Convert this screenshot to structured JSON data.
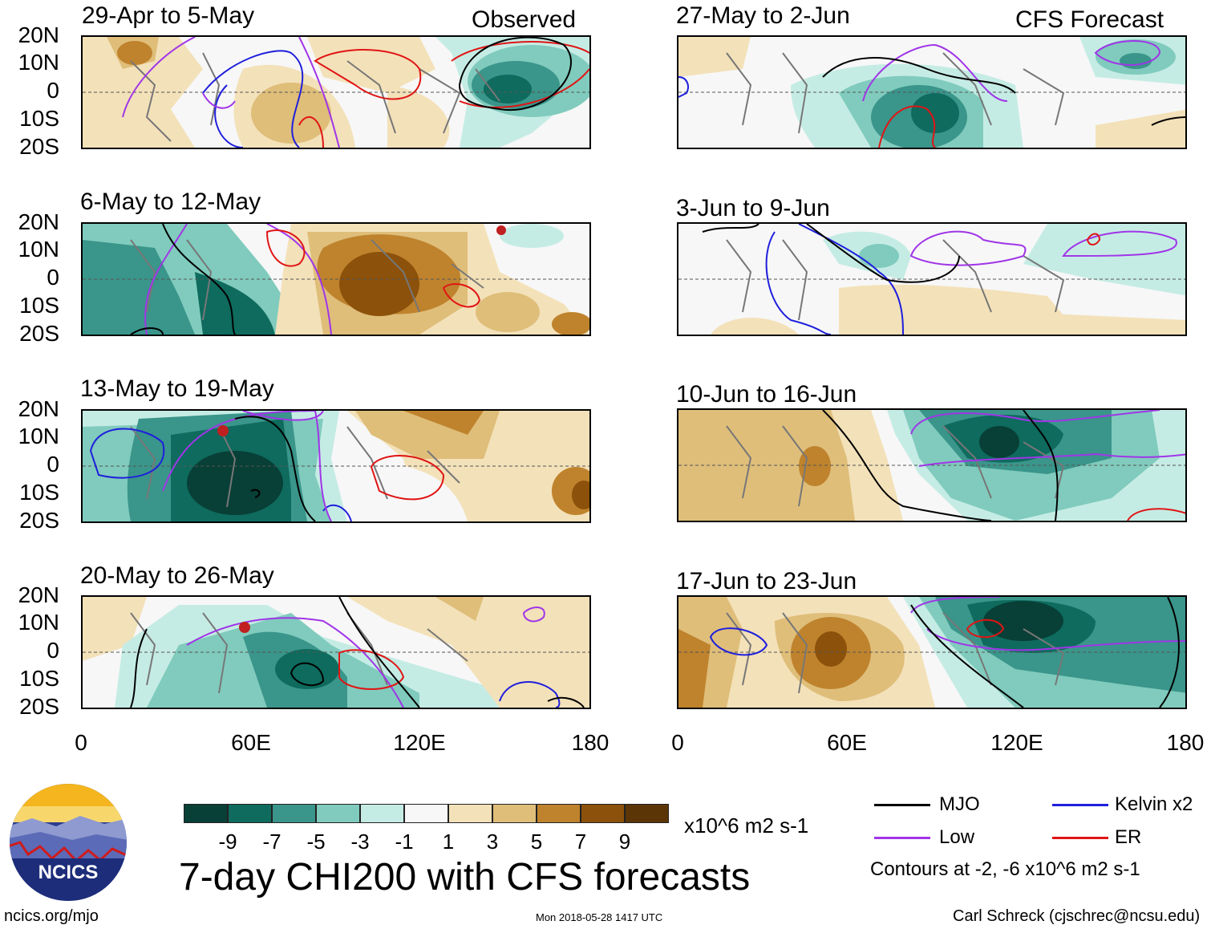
{
  "panels": [
    {
      "id": "p1",
      "title": "29-Apr to 5-May",
      "tag": "Observed"
    },
    {
      "id": "p2",
      "title": "6-May to 12-May",
      "tag": ""
    },
    {
      "id": "p3",
      "title": "13-May to 19-May",
      "tag": ""
    },
    {
      "id": "p4",
      "title": "20-May to 26-May",
      "tag": ""
    },
    {
      "id": "p5",
      "title": "27-May to 2-Jun",
      "tag": "CFS Forecast"
    },
    {
      "id": "p6",
      "title": "3-Jun to 9-Jun",
      "tag": ""
    },
    {
      "id": "p7",
      "title": "10-Jun to 16-Jun",
      "tag": ""
    },
    {
      "id": "p8",
      "title": "17-Jun to 23-Jun",
      "tag": ""
    }
  ],
  "axes": {
    "lat_labels": [
      "20N",
      "10N",
      "0",
      "10S",
      "20S"
    ],
    "lon_labels": [
      "0",
      "60E",
      "120E",
      "180"
    ]
  },
  "colorbar": {
    "labels": [
      "-9",
      "-7",
      "-5",
      "-3",
      "-1",
      "1",
      "3",
      "5",
      "7",
      "9"
    ],
    "units": "x10^6 m2 s-1",
    "colors": [
      "#083f36",
      "#0e6b5e",
      "#3a958a",
      "#80cbbd",
      "#c5ece4",
      "#f7f7f7",
      "#f3e1b9",
      "#dfbe7a",
      "#bf832d",
      "#8c510a",
      "#5c3506"
    ]
  },
  "legend": {
    "mjo": "MJO",
    "kelvin": "Kelvin x2",
    "low": "Low",
    "er": "ER",
    "note": "Contours at -2, -6 x10^6 m2 s-1",
    "colors": {
      "mjo": "#000000",
      "kelvin": "#1f1fdd",
      "low": "#a035e8",
      "er": "#e01515"
    }
  },
  "footer": {
    "title": "7-day CHI200 with CFS forecasts",
    "site": "ncics.org/mjo",
    "timestamp": "Mon 2018-05-28 1417 UTC",
    "credit": "Carl Schreck (cjschrec@ncsu.edu)",
    "logo_text": "NCICS"
  }
}
